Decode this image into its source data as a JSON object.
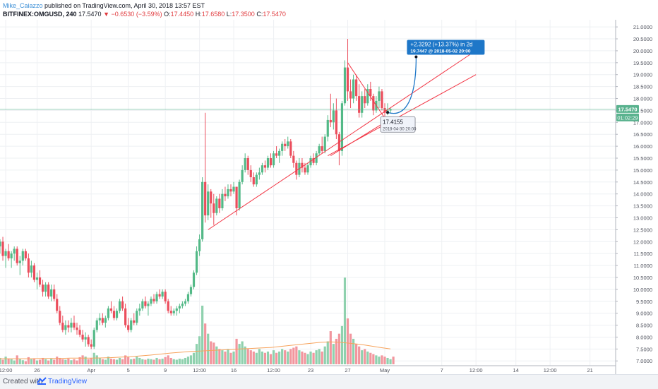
{
  "header": {
    "author": "Mike_Caiazzo",
    "published": "published on TradingView.com, April 30, 2018 13:57 EST",
    "symbol": "BITFINEX:OMGUSD, 240",
    "last": "17.5470",
    "arrow": "▼",
    "change": "−0.6530 (−3.59%)",
    "o_label": "O:",
    "o_value": "17.4450",
    "h_label": "H:",
    "h_value": "17.6580",
    "l_label": "L:",
    "l_value": "17.3500",
    "c_label": "C:",
    "c_value": "17.5470"
  },
  "footer": {
    "created_with": "Created with",
    "brand": "TradingView"
  },
  "colors": {
    "up": "#53b987",
    "down": "#eb4d5c",
    "volume_up": "#8fd1ae",
    "volume_down": "#f2969e",
    "trendline": "#f23645",
    "projection": "#1e77c8",
    "price_line": "#59b28e",
    "volume_ma": "#f7a35c",
    "grid": "#eef0f3"
  },
  "chart_data": {
    "type": "candlestick",
    "symbol": "BITFINEX:OMGUSD",
    "interval": "240",
    "ylim": [
      6.8,
      21.3
    ],
    "y_ticks": [
      "21.0000",
      "20.5000",
      "20.0000",
      "19.5000",
      "19.0000",
      "18.5000",
      "18.0000",
      "17.5000",
      "17.0000",
      "16.5000",
      "16.0000",
      "15.5000",
      "15.0000",
      "14.5000",
      "14.0000",
      "13.5000",
      "13.0000",
      "12.5000",
      "12.0000",
      "11.5000",
      "11.0000",
      "10.5000",
      "10.0000",
      "9.5000",
      "9.0000",
      "8.5000",
      "8.0000",
      "7.5000",
      "7.0000"
    ],
    "x_ticks": [
      "12:00",
      "26",
      "Apr",
      "5",
      "9",
      "12:00",
      "16",
      "12:00",
      "23",
      "27",
      "May",
      "7",
      "12:00",
      "14",
      "12:00",
      "21"
    ],
    "x_tick_pos": [
      2,
      13,
      32,
      45,
      58,
      70,
      82,
      96,
      109,
      122,
      135,
      155,
      167,
      181,
      193,
      207
    ],
    "x_range": [
      0,
      216
    ],
    "price_label": "17.5470",
    "countdown_label": "01:02:29",
    "last_price": 17.547,
    "candles": [
      [
        11.8,
        12.1,
        11.5,
        12.0
      ],
      [
        12.0,
        12.2,
        11.2,
        11.4
      ],
      [
        11.4,
        11.7,
        10.9,
        11.6
      ],
      [
        11.6,
        11.9,
        11.2,
        11.3
      ],
      [
        11.3,
        11.6,
        10.9,
        11.5
      ],
      [
        11.5,
        11.8,
        11.2,
        11.7
      ],
      [
        11.7,
        11.8,
        11.0,
        11.1
      ],
      [
        11.1,
        11.4,
        10.6,
        11.2
      ],
      [
        11.2,
        11.7,
        11.0,
        11.6
      ],
      [
        11.6,
        11.7,
        11.2,
        11.3
      ],
      [
        11.3,
        11.5,
        10.5,
        10.7
      ],
      [
        10.7,
        11.2,
        10.5,
        11.0
      ],
      [
        11.0,
        11.1,
        10.3,
        10.4
      ],
      [
        10.4,
        10.7,
        10.0,
        10.5
      ],
      [
        10.5,
        10.8,
        10.1,
        10.2
      ],
      [
        10.2,
        10.4,
        9.7,
        9.9
      ],
      [
        9.9,
        10.3,
        9.7,
        10.2
      ],
      [
        10.2,
        10.3,
        9.6,
        9.7
      ],
      [
        9.7,
        10.2,
        9.5,
        10.0
      ],
      [
        10.0,
        10.2,
        9.5,
        9.6
      ],
      [
        9.6,
        9.8,
        9.0,
        9.1
      ],
      [
        9.1,
        9.3,
        8.5,
        8.6
      ],
      [
        8.6,
        8.9,
        8.2,
        8.3
      ],
      [
        8.3,
        8.7,
        8.1,
        8.5
      ],
      [
        8.5,
        8.7,
        8.2,
        8.4
      ],
      [
        8.4,
        8.8,
        8.2,
        8.6
      ],
      [
        8.6,
        8.9,
        8.3,
        8.4
      ],
      [
        8.4,
        8.6,
        8.1,
        8.3
      ],
      [
        8.3,
        8.5,
        8.0,
        8.1
      ],
      [
        8.1,
        8.3,
        7.8,
        7.9
      ],
      [
        7.9,
        8.2,
        7.6,
        8.0
      ],
      [
        8.0,
        8.1,
        7.6,
        7.7
      ],
      [
        7.7,
        7.9,
        7.5,
        7.6
      ],
      [
        7.6,
        8.4,
        7.5,
        8.3
      ],
      [
        8.3,
        8.8,
        8.2,
        8.7
      ],
      [
        8.7,
        9.0,
        8.5,
        8.8
      ],
      [
        8.8,
        9.0,
        8.5,
        8.6
      ],
      [
        8.6,
        8.9,
        8.4,
        8.8
      ],
      [
        8.8,
        9.3,
        8.7,
        9.2
      ],
      [
        9.2,
        9.5,
        9.0,
        9.1
      ],
      [
        9.1,
        9.3,
        8.7,
        8.8
      ],
      [
        8.8,
        9.2,
        8.7,
        9.1
      ],
      [
        9.1,
        9.6,
        9.0,
        9.5
      ],
      [
        9.5,
        9.7,
        9.1,
        9.2
      ],
      [
        9.2,
        9.4,
        8.4,
        8.5
      ],
      [
        8.5,
        8.8,
        8.2,
        8.3
      ],
      [
        8.3,
        8.8,
        8.2,
        8.7
      ],
      [
        8.7,
        9.0,
        8.5,
        8.6
      ],
      [
        8.6,
        9.2,
        8.5,
        9.1
      ],
      [
        9.1,
        9.4,
        8.9,
        9.2
      ],
      [
        9.2,
        9.6,
        9.1,
        9.5
      ],
      [
        9.5,
        9.7,
        9.2,
        9.3
      ],
      [
        9.3,
        9.5,
        8.9,
        9.4
      ],
      [
        9.4,
        9.7,
        9.3,
        9.6
      ],
      [
        9.6,
        9.8,
        9.4,
        9.5
      ],
      [
        9.5,
        9.9,
        9.4,
        9.8
      ],
      [
        9.8,
        10.0,
        9.6,
        9.7
      ],
      [
        9.7,
        10.0,
        9.6,
        9.9
      ],
      [
        9.9,
        10.0,
        9.4,
        9.5
      ],
      [
        9.5,
        9.6,
        9.0,
        9.1
      ],
      [
        9.1,
        9.3,
        8.9,
        9.0
      ],
      [
        9.0,
        9.2,
        8.9,
        9.1
      ],
      [
        9.1,
        9.3,
        8.9,
        9.2
      ],
      [
        9.2,
        9.4,
        9.0,
        9.3
      ],
      [
        9.3,
        9.5,
        9.2,
        9.4
      ],
      [
        9.4,
        9.6,
        9.3,
        9.5
      ],
      [
        9.5,
        9.9,
        9.4,
        9.8
      ],
      [
        9.8,
        10.2,
        9.7,
        10.1
      ],
      [
        10.1,
        10.8,
        10.0,
        10.7
      ],
      [
        10.7,
        11.8,
        10.6,
        11.6
      ],
      [
        11.6,
        12.3,
        11.4,
        12.1
      ],
      [
        12.1,
        14.7,
        12.0,
        14.5
      ],
      [
        14.5,
        17.4,
        12.8,
        13.1
      ],
      [
        13.1,
        14.4,
        12.9,
        14.1
      ],
      [
        14.1,
        14.2,
        13.0,
        13.6
      ],
      [
        13.6,
        14.0,
        12.7,
        13.2
      ],
      [
        13.2,
        13.9,
        13.1,
        13.8
      ],
      [
        13.8,
        14.0,
        13.2,
        13.4
      ],
      [
        13.4,
        14.2,
        13.3,
        14.0
      ],
      [
        14.0,
        14.3,
        13.7,
        13.9
      ],
      [
        13.9,
        14.4,
        13.8,
        14.2
      ],
      [
        14.2,
        14.4,
        13.9,
        14.1
      ],
      [
        14.1,
        14.5,
        14.0,
        14.3
      ],
      [
        14.3,
        14.3,
        13.1,
        13.4
      ],
      [
        13.4,
        14.6,
        13.3,
        14.5
      ],
      [
        14.5,
        15.2,
        14.4,
        15.0
      ],
      [
        15.0,
        15.7,
        14.9,
        15.5
      ],
      [
        15.5,
        15.6,
        14.8,
        15.0
      ],
      [
        15.0,
        15.2,
        14.5,
        14.7
      ],
      [
        14.7,
        14.9,
        14.3,
        14.4
      ],
      [
        14.4,
        14.9,
        14.3,
        14.8
      ],
      [
        14.8,
        15.1,
        14.6,
        14.9
      ],
      [
        14.9,
        15.3,
        14.8,
        15.2
      ],
      [
        15.2,
        15.4,
        14.9,
        15.1
      ],
      [
        15.1,
        15.6,
        15.0,
        15.5
      ],
      [
        15.5,
        15.7,
        15.1,
        15.2
      ],
      [
        15.2,
        15.8,
        15.1,
        15.7
      ],
      [
        15.7,
        16.0,
        15.5,
        15.6
      ],
      [
        15.6,
        15.9,
        15.3,
        15.8
      ],
      [
        15.8,
        16.2,
        15.6,
        16.1
      ],
      [
        16.1,
        16.3,
        15.8,
        16.0
      ],
      [
        16.0,
        16.4,
        15.9,
        16.2
      ],
      [
        16.2,
        16.3,
        15.5,
        15.6
      ],
      [
        15.6,
        15.8,
        15.1,
        15.3
      ],
      [
        15.3,
        15.4,
        14.6,
        14.8
      ],
      [
        14.8,
        15.5,
        14.7,
        15.3
      ],
      [
        15.3,
        15.5,
        14.9,
        15.1
      ],
      [
        15.1,
        15.3,
        14.8,
        14.9
      ],
      [
        14.9,
        15.3,
        14.8,
        15.2
      ],
      [
        15.2,
        15.6,
        15.1,
        15.5
      ],
      [
        15.5,
        15.7,
        15.2,
        15.3
      ],
      [
        15.3,
        15.8,
        15.2,
        15.7
      ],
      [
        15.7,
        16.1,
        15.6,
        16.0
      ],
      [
        16.0,
        16.4,
        15.7,
        15.8
      ],
      [
        15.8,
        16.5,
        15.7,
        16.4
      ],
      [
        16.4,
        17.3,
        16.2,
        17.1
      ],
      [
        17.1,
        18.2,
        16.8,
        17.0
      ],
      [
        17.0,
        17.8,
        16.7,
        17.5
      ],
      [
        17.5,
        18.0,
        16.3,
        16.5
      ],
      [
        16.5,
        16.6,
        15.2,
        15.8
      ],
      [
        15.8,
        17.9,
        15.6,
        17.8
      ],
      [
        17.8,
        19.6,
        17.7,
        19.3
      ],
      [
        19.3,
        20.5,
        17.9,
        18.3
      ],
      [
        18.3,
        18.8,
        17.6,
        18.0
      ],
      [
        18.0,
        19.0,
        17.8,
        18.8
      ],
      [
        18.8,
        19.0,
        17.9,
        18.1
      ],
      [
        18.1,
        18.6,
        17.2,
        17.4
      ],
      [
        17.4,
        18.3,
        17.2,
        18.1
      ],
      [
        18.1,
        18.4,
        17.6,
        17.8
      ],
      [
        17.8,
        18.6,
        17.7,
        18.4
      ],
      [
        18.4,
        18.7,
        17.9,
        18.1
      ],
      [
        18.1,
        18.2,
        17.3,
        17.5
      ],
      [
        17.5,
        18.1,
        17.4,
        17.9
      ],
      [
        17.9,
        18.5,
        17.6,
        18.3
      ],
      [
        18.3,
        18.4,
        17.5,
        17.6
      ],
      [
        17.6,
        17.8,
        17.2,
        17.4
      ],
      [
        17.4,
        17.8,
        17.3,
        17.5
      ],
      [
        17.5,
        17.6,
        17.4,
        17.55
      ]
    ],
    "volumes": [
      0.25,
      0.18,
      0.3,
      0.22,
      0.2,
      0.15,
      0.35,
      0.2,
      0.16,
      0.12,
      0.28,
      0.2,
      0.22,
      0.15,
      0.18,
      0.25,
      0.2,
      0.15,
      0.22,
      0.18,
      0.3,
      0.25,
      0.2,
      0.18,
      0.22,
      0.16,
      0.2,
      0.15,
      0.28,
      0.35,
      0.3,
      0.2,
      0.25,
      0.45,
      0.35,
      0.25,
      0.2,
      0.18,
      0.3,
      0.22,
      0.2,
      0.18,
      0.25,
      0.2,
      0.35,
      0.28,
      0.2,
      0.22,
      0.3,
      0.25,
      0.2,
      0.18,
      0.22,
      0.2,
      0.18,
      0.25,
      0.2,
      0.22,
      0.28,
      0.35,
      0.25,
      0.2,
      0.18,
      0.22,
      0.2,
      0.25,
      0.3,
      0.35,
      0.45,
      0.8,
      1.1,
      2.3,
      1.6,
      1.2,
      0.9,
      0.85,
      0.7,
      0.6,
      0.55,
      0.5,
      0.6,
      0.45,
      0.5,
      1.0,
      0.8,
      0.9,
      0.7,
      0.6,
      0.55,
      0.5,
      0.45,
      0.6,
      0.5,
      0.45,
      0.5,
      0.4,
      0.55,
      0.45,
      0.5,
      0.6,
      0.55,
      0.5,
      0.6,
      0.65,
      0.7,
      0.55,
      0.5,
      0.45,
      0.4,
      0.5,
      0.45,
      0.55,
      0.6,
      0.5,
      0.7,
      0.9,
      1.3,
      0.8,
      1.0,
      1.2,
      1.5,
      3.4,
      1.8,
      1.2,
      1.0,
      0.8,
      0.7,
      0.55,
      0.6,
      0.5,
      0.45,
      0.4,
      0.35,
      0.3,
      0.35,
      0.3,
      0.25,
      0.2,
      0.3
    ],
    "volume_ma": [
      0.22,
      0.22,
      0.22,
      0.22,
      0.23,
      0.23,
      0.23,
      0.24,
      0.24,
      0.24,
      0.25,
      0.26,
      0.28,
      0.3,
      0.33,
      0.36,
      0.4,
      0.44,
      0.47,
      0.5,
      0.52,
      0.54,
      0.56,
      0.58,
      0.6,
      0.62,
      0.64,
      0.66,
      0.7,
      0.74,
      0.78,
      0.82,
      0.86,
      0.88,
      0.86,
      0.82,
      0.78,
      0.72,
      0.66,
      0.6
    ],
    "channel_lines": [
      {
        "x1": 73,
        "y1": 12.5,
        "x2": 165,
        "y2": 19.85
      },
      {
        "x1": 115,
        "y1": 15.6,
        "x2": 167,
        "y2": 19.0
      },
      {
        "x1": 116,
        "y1": 15.6,
        "x2": 135,
        "y2": 17.0
      },
      {
        "x1": 122,
        "y1": 19.5,
        "x2": 136,
        "y2": 17.0
      }
    ],
    "projection": {
      "x1": 136,
      "y1": 17.4155,
      "x2": 146,
      "y2": 19.7447
    },
    "projection_label": "+2.3292 (+13.37%) in 2d",
    "projection_detail": "19.7447 @ 2018-05-02 20:00",
    "low_label": "17.4155",
    "low_detail": "2018-04-30 20:00"
  }
}
